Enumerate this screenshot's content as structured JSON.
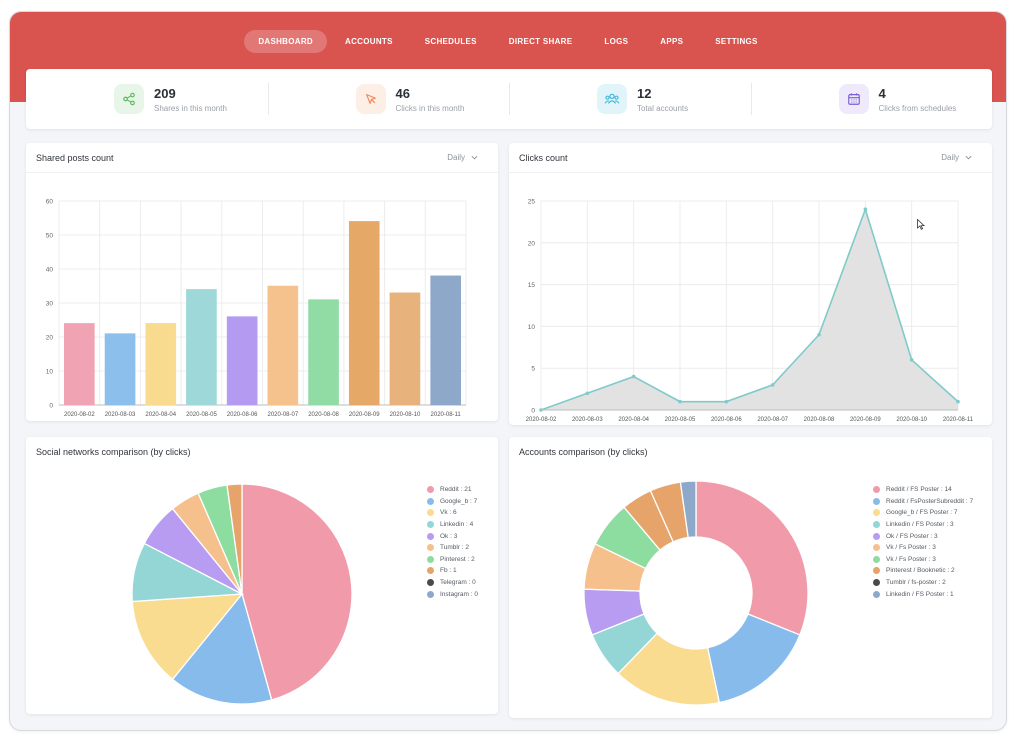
{
  "nav": [
    {
      "label": "DASHBOARD",
      "active": true
    },
    {
      "label": "ACCOUNTS",
      "active": false
    },
    {
      "label": "SCHEDULES",
      "active": false
    },
    {
      "label": "DIRECT SHARE",
      "active": false
    },
    {
      "label": "LOGS",
      "active": false
    },
    {
      "label": "APPS",
      "active": false
    },
    {
      "label": "SETTINGS",
      "active": false
    }
  ],
  "stats": [
    {
      "value": "209",
      "label": "Shares in this month",
      "icon": "share-icon",
      "color": "#5cb85c",
      "bg": "#e8f6ea"
    },
    {
      "value": "46",
      "label": "Clicks in this month",
      "icon": "cursor-icon",
      "color": "#f08a5d",
      "bg": "#fdeee6"
    },
    {
      "value": "12",
      "label": "Total accounts",
      "icon": "users-icon",
      "color": "#3bb5d6",
      "bg": "#e1f4fa"
    },
    {
      "value": "4",
      "label": "Clicks from schedules",
      "icon": "calendar-icon",
      "color": "#7c5cd6",
      "bg": "#efeafb"
    }
  ],
  "cards": {
    "shared": {
      "title": "Shared posts count",
      "dropdown": "Daily"
    },
    "clicks": {
      "title": "Clicks count",
      "dropdown": "Daily"
    },
    "social": {
      "title": "Social networks comparison (by clicks)"
    },
    "accounts": {
      "title": "Accounts comparison (by clicks)"
    }
  },
  "chart_data": [
    {
      "type": "bar",
      "categories": [
        "2020-08-02",
        "2020-08-03",
        "2020-08-04",
        "2020-08-05",
        "2020-08-06",
        "2020-08-07",
        "2020-08-08",
        "2020-08-09",
        "2020-08-10",
        "2020-08-11"
      ],
      "values": [
        24,
        21,
        24,
        34,
        26,
        35,
        31,
        54,
        33,
        38
      ],
      "colors": [
        "#f0a3b3",
        "#8cbfeb",
        "#f8db8f",
        "#9fd8d8",
        "#b49af0",
        "#f5c28e",
        "#91dba5",
        "#e6a867",
        "#e8b27c",
        "#8ea8c9"
      ],
      "ylim": [
        0,
        60
      ],
      "yticks": [
        0,
        10,
        20,
        30,
        40,
        50,
        60
      ],
      "grid": true
    },
    {
      "type": "area",
      "categories": [
        "2020-08-02",
        "2020-08-03",
        "2020-08-04",
        "2020-08-05",
        "2020-08-06",
        "2020-08-07",
        "2020-08-08",
        "2020-08-09",
        "2020-08-10",
        "2020-08-11"
      ],
      "values": [
        0,
        2,
        4,
        1,
        1,
        3,
        9,
        24,
        6,
        1
      ],
      "line_color": "#7ecbc9",
      "fill_color": "#e2e2e2",
      "ylim": [
        0,
        25
      ],
      "yticks": [
        0,
        5,
        10,
        15,
        20,
        25
      ],
      "grid": true
    },
    {
      "type": "pie",
      "labels": [
        "Reddit : 21",
        "Google_b : 7",
        "Vk : 6",
        "Linkedin : 4",
        "Ok : 3",
        "Tumblr : 2",
        "Pinterest : 2",
        "Fb : 1",
        "Telegram : 0",
        "Instagram : 0"
      ],
      "values": [
        21,
        7,
        6,
        4,
        3,
        2,
        2,
        1,
        0,
        0
      ],
      "colors": [
        "#f19aaa",
        "#86bbec",
        "#f9dc8f",
        "#94d6d6",
        "#b79cf2",
        "#f5c08c",
        "#8ddca0",
        "#e6a36a",
        "#4a4a4a",
        "#8ea8c9"
      ],
      "legend": "right"
    },
    {
      "type": "pie",
      "donut": true,
      "labels": [
        "Reddit / FS Poster : 14",
        "Reddit / FsPosterSubreddit : 7",
        "Google_b / FS Poster : 7",
        "Linkedin / FS Poster : 3",
        "Ok / FS Poster : 3",
        "Vk / Fs Poster : 3",
        "Vk / Fs Poster : 3",
        "Pinterest / Booknetic : 2",
        "Tumblr / fs-poster : 2",
        "Linkedin / FS Poster : 1"
      ],
      "values": [
        14,
        7,
        7,
        3,
        3,
        3,
        3,
        2,
        2,
        1
      ],
      "colors": [
        "#f19aaa",
        "#86bbec",
        "#f9dc8f",
        "#94d6d6",
        "#b79cf2",
        "#f5c08c",
        "#8ddca0",
        "#e6a36a",
        "#4a4a4a",
        "#8ea8c9"
      ],
      "slice_colors": [
        "#f19aaa",
        "#86bbec",
        "#f9dc8f",
        "#94d6d6",
        "#b79cf2",
        "#f5c08c",
        "#8ddca0",
        "#e6a36a",
        "#e6a36a",
        "#8ea8c9"
      ],
      "legend": "right"
    }
  ]
}
